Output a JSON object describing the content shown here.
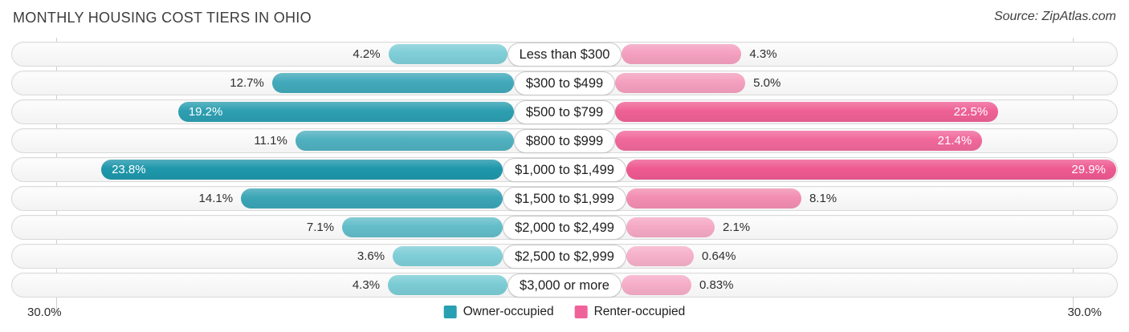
{
  "source": "Source: ZipAtlas.com",
  "chart_data": {
    "type": "bar",
    "orientation": "diverging-horizontal",
    "title": "MONTHLY HOUSING COST TIERS IN OHIO",
    "categories": [
      "Less than $300",
      "$300 to $499",
      "$500 to $799",
      "$800 to $999",
      "$1,000 to $1,499",
      "$1,500 to $1,999",
      "$2,000 to $2,499",
      "$2,500 to $2,999",
      "$3,000 or more"
    ],
    "series": [
      {
        "name": "Owner-occupied",
        "values": [
          4.2,
          12.7,
          19.2,
          11.1,
          23.8,
          14.1,
          7.1,
          3.6,
          4.3
        ],
        "labels": [
          "4.2%",
          "12.7%",
          "19.2%",
          "11.1%",
          "23.8%",
          "14.1%",
          "7.1%",
          "3.6%",
          "4.3%"
        ],
        "colors": [
          "#7fced8",
          "#41a9ba",
          "#2d9fb1",
          "#4fb0bf",
          "#1f97ab",
          "#3ba5b6",
          "#63bdc9",
          "#7fced8",
          "#7bccd5"
        ]
      },
      {
        "name": "Renter-occupied",
        "values": [
          4.3,
          5.0,
          22.5,
          21.4,
          29.9,
          8.1,
          2.1,
          0.64,
          0.83
        ],
        "labels": [
          "4.3%",
          "5.0%",
          "22.5%",
          "21.4%",
          "29.9%",
          "8.1%",
          "2.1%",
          "0.64%",
          "0.83%"
        ],
        "colors": [
          "#f4a0bf",
          "#f49fbe",
          "#ef6195",
          "#f0689b",
          "#ee5a91",
          "#f28eb2",
          "#f5a9c5",
          "#f6b0ca",
          "#f6adc8"
        ]
      }
    ],
    "xlim": [
      0,
      30
    ],
    "inside_label_threshold": 15,
    "axis_end_labels": {
      "left": "30.0%",
      "right": "30.0%"
    },
    "grid": true,
    "legend_position": "bottom-center",
    "legend": [
      {
        "label": "Owner-occupied",
        "color": "#26a0b2"
      },
      {
        "label": "Renter-occupied",
        "color": "#f0639a"
      }
    ]
  }
}
